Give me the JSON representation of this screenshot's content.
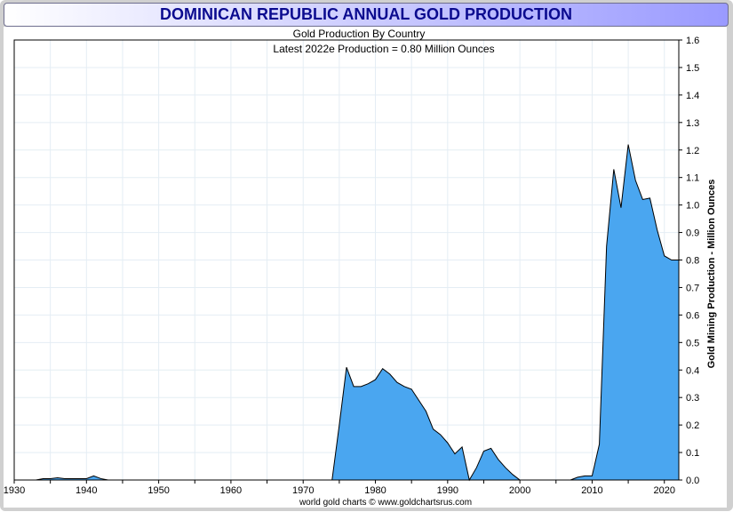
{
  "title": "DOMINICAN REPUBLIC ANNUAL GOLD PRODUCTION",
  "colors": {
    "fill": "#4aa6f0",
    "line": "#000000",
    "grid": "#e4edf4",
    "title_text": "#0b0b8f"
  },
  "chart_data": {
    "type": "area",
    "title": "Gold Production By Country",
    "subtitle": "Latest 2022e Production = 0.80 Million Ounces",
    "xlabel": "",
    "ylabel": "Gold Mining Production - Million Ounces",
    "footer": "world gold charts © www.goldchartsrus.com",
    "xlim": [
      1930,
      2022
    ],
    "ylim": [
      0,
      1.6
    ],
    "x_ticks": [
      "1930",
      "1940",
      "1950",
      "1960",
      "1970",
      "1980",
      "1990",
      "2000",
      "2010",
      "2020"
    ],
    "y_ticks": [
      "1.6",
      "1.5",
      "1.4",
      "1.3",
      "1.2",
      "1.1",
      "1.0",
      "0.9",
      "0.8",
      "0.7",
      "0.6",
      "0.5",
      "0.4",
      "0.3",
      "0.2",
      "0.1",
      "0.0"
    ],
    "x": [
      1933,
      1934,
      1935,
      1936,
      1937,
      1938,
      1939,
      1940,
      1941,
      1942,
      1943,
      1944,
      1974,
      1975,
      1976,
      1977,
      1978,
      1979,
      1980,
      1981,
      1982,
      1983,
      1984,
      1985,
      1986,
      1987,
      1988,
      1989,
      1990,
      1991,
      1992,
      1993,
      1994,
      1995,
      1996,
      1997,
      1998,
      1999,
      2000,
      2007,
      2008,
      2009,
      2010,
      2011,
      2012,
      2013,
      2014,
      2015,
      2016,
      2017,
      2018,
      2019,
      2020,
      2021,
      2022
    ],
    "values": [
      0,
      0.005,
      0.005,
      0.008,
      0.005,
      0.005,
      0.005,
      0.005,
      0.015,
      0.005,
      0,
      0,
      0,
      0.2,
      0.41,
      0.34,
      0.34,
      0.35,
      0.365,
      0.405,
      0.385,
      0.355,
      0.34,
      0.33,
      0.29,
      0.25,
      0.185,
      0.165,
      0.135,
      0.095,
      0.12,
      0,
      0.045,
      0.105,
      0.115,
      0.075,
      0.045,
      0.02,
      0,
      0,
      0.01,
      0.015,
      0.015,
      0.13,
      0.85,
      1.13,
      0.99,
      1.22,
      1.09,
      1.02,
      1.025,
      0.91,
      0.815,
      0.8,
      0.8
    ]
  }
}
